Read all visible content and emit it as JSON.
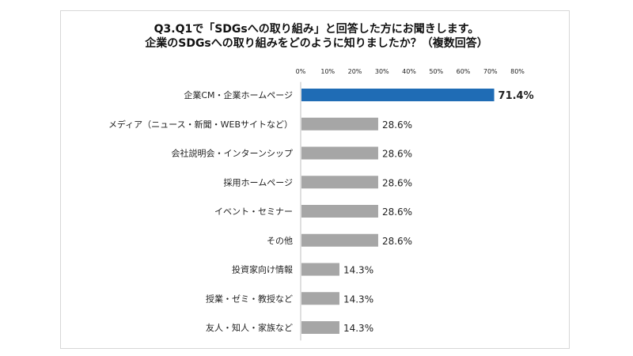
{
  "title_lines": [
    "Q3.Q1で「SDGsへの取り組み」と回答した方にお聞きします。",
    "企業のSDGsへの取り組みをどのように知りましたか？（複数回答）"
  ],
  "colors": {
    "highlight": "#1f6cb5",
    "default": "#a6a6a6",
    "axis": "#bfbfbf"
  },
  "chart_data": {
    "type": "bar",
    "orientation": "horizontal",
    "title": "Q3.Q1で「SDGsへの取り組み」と回答した方にお聞きします。 企業のSDGsへの取り組みをどのように知りましたか？（複数回答）",
    "xlim": [
      0,
      80
    ],
    "xticks": [
      0,
      10,
      20,
      30,
      40,
      50,
      60,
      70,
      80
    ],
    "xtick_labels": [
      "0%",
      "10%",
      "20%",
      "30%",
      "40%",
      "50%",
      "60%",
      "70%",
      "80%"
    ],
    "xaxis_position": "top",
    "grid": false,
    "categories": [
      "企業CM・企業ホームページ",
      "メディア（ニュース・新聞・WEBサイトなど）",
      "会社説明会・インターンシップ",
      "採用ホームページ",
      "イベント・セミナー",
      "その他",
      "投資家向け情報",
      "授業・ゼミ・教授など",
      "友人・知人・家族など"
    ],
    "values": [
      71.4,
      28.6,
      28.6,
      28.6,
      28.6,
      28.6,
      14.3,
      14.3,
      14.3
    ],
    "value_labels": [
      "71.4%",
      "28.6%",
      "28.6%",
      "28.6%",
      "28.6%",
      "28.6%",
      "14.3%",
      "14.3%",
      "14.3%"
    ],
    "highlight_index": 0
  }
}
